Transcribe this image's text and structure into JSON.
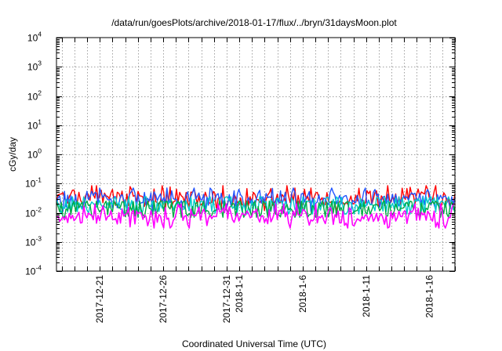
{
  "chart_data": {
    "type": "line",
    "title": "/data/run/goesPlots/archive/2018-01-17/flux/../bryn/31daysMoon.plot",
    "xlabel": "Coordinated Universal Time (UTC)",
    "ylabel": "cGy/day",
    "yscale": "log",
    "ylim": [
      0.0001,
      10000
    ],
    "y_ticks": [
      {
        "base": "10",
        "exp": "-4"
      },
      {
        "base": "10",
        "exp": "-3"
      },
      {
        "base": "10",
        "exp": "-2"
      },
      {
        "base": "10",
        "exp": "-1"
      },
      {
        "base": "10",
        "exp": "0"
      },
      {
        "base": "10",
        "exp": "1"
      },
      {
        "base": "10",
        "exp": "2"
      },
      {
        "base": "10",
        "exp": "3"
      },
      {
        "base": "10",
        "exp": "4"
      }
    ],
    "xlim": [
      "2017-12-17T14:00",
      "2018-01-18T00:00"
    ],
    "x_ticks": [
      {
        "date": "2017-12-21",
        "label": "2017-12-21"
      },
      {
        "date": "2017-12-26",
        "label": "2017-12-26"
      },
      {
        "date": "2017-12-31",
        "label": "2017-12-31"
      },
      {
        "date": "2018-01-01",
        "label": "2018-1-1"
      },
      {
        "date": "2018-01-06",
        "label": "2018-1-6"
      },
      {
        "date": "2018-01-11",
        "label": "2018-1-11"
      },
      {
        "date": "2018-01-16",
        "label": "2018-1-16"
      }
    ],
    "grid": true,
    "series": [
      {
        "color": "#ff0000",
        "values": {
          "start": "2017-12-17T14:00",
          "end": "2018-01-18T00:00",
          "points": 250,
          "typical": 0.032,
          "range": [
            0.012,
            0.085
          ]
        }
      },
      {
        "color": "#2255ff",
        "values": {
          "start": "2017-12-17T14:00",
          "end": "2018-01-18T00:00",
          "points": 250,
          "typical": 0.028,
          "range": [
            0.011,
            0.07
          ]
        }
      },
      {
        "color": "#00cccc",
        "values": {
          "start": "2017-12-17T14:00",
          "end": "2018-01-18T00:00",
          "points": 250,
          "typical": 0.018,
          "range": [
            0.009,
            0.035
          ]
        }
      },
      {
        "color": "#00aa44",
        "values": {
          "start": "2017-12-17T14:00",
          "end": "2018-01-18T00:00",
          "points": 250,
          "typical": 0.014,
          "range": [
            0.007,
            0.025
          ]
        }
      },
      {
        "color": "#ff00ff",
        "values": {
          "start": "2017-12-17T14:00",
          "end": "2018-01-18T00:00",
          "points": 250,
          "typical": 0.0075,
          "range": [
            0.003,
            0.02
          ]
        }
      }
    ]
  }
}
